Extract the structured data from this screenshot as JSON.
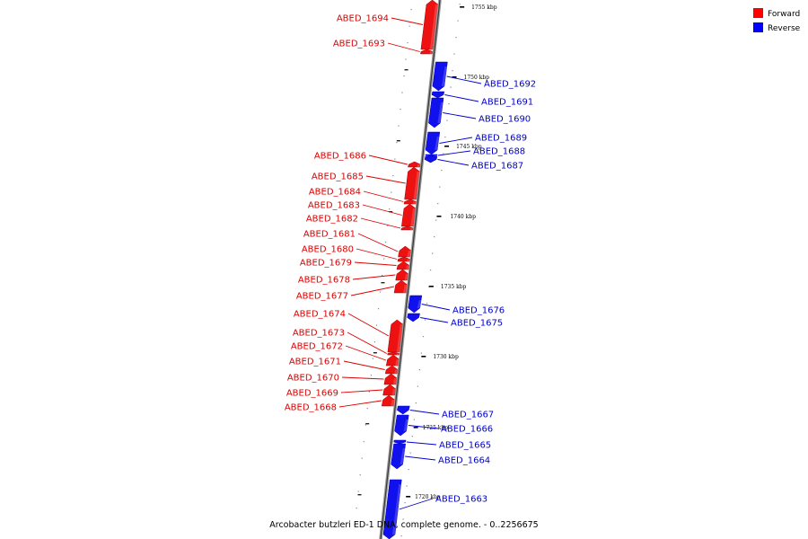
{
  "caption": "Arcobacter butzleri ED-1 DNA, complete genome. - 0..2256675",
  "legend": [
    {
      "label": "Forward",
      "color": "#ff0000"
    },
    {
      "label": "Reverse",
      "color": "#0000ff"
    }
  ],
  "colors": {
    "forward": "#ee1111",
    "reverse": "#1111ee",
    "forward_label": "#dd0000",
    "reverse_label": "#0000cc"
  },
  "ticks": [
    {
      "kbp": 1755,
      "label": "1755 kbp"
    },
    {
      "kbp": 1750,
      "label": "1750 kbp"
    },
    {
      "kbp": 1745,
      "label": "1745 kbp"
    },
    {
      "kbp": 1740,
      "label": "1740 kbp"
    },
    {
      "kbp": 1735,
      "label": "1735 kbp"
    },
    {
      "kbp": 1730,
      "label": "1730 kbp"
    },
    {
      "kbp": 1725,
      "label": "1725 kbp"
    },
    {
      "kbp": 1720,
      "label": "1720 kbp"
    }
  ],
  "genes": [
    {
      "name": "ABED_1694",
      "strand": "forward"
    },
    {
      "name": "ABED_1693",
      "strand": "forward"
    },
    {
      "name": "ABED_1692",
      "strand": "reverse"
    },
    {
      "name": "ABED_1691",
      "strand": "reverse"
    },
    {
      "name": "ABED_1690",
      "strand": "reverse"
    },
    {
      "name": "ABED_1689",
      "strand": "reverse"
    },
    {
      "name": "ABED_1688",
      "strand": "reverse"
    },
    {
      "name": "ABED_1687",
      "strand": "reverse"
    },
    {
      "name": "ABED_1686",
      "strand": "forward"
    },
    {
      "name": "ABED_1685",
      "strand": "forward"
    },
    {
      "name": "ABED_1684",
      "strand": "forward"
    },
    {
      "name": "ABED_1683",
      "strand": "forward"
    },
    {
      "name": "ABED_1682",
      "strand": "forward"
    },
    {
      "name": "ABED_1681",
      "strand": "forward"
    },
    {
      "name": "ABED_1680",
      "strand": "forward"
    },
    {
      "name": "ABED_1679",
      "strand": "forward"
    },
    {
      "name": "ABED_1678",
      "strand": "forward"
    },
    {
      "name": "ABED_1677",
      "strand": "forward"
    },
    {
      "name": "ABED_1676",
      "strand": "reverse"
    },
    {
      "name": "ABED_1675",
      "strand": "reverse"
    },
    {
      "name": "ABED_1674",
      "strand": "forward"
    },
    {
      "name": "ABED_1673",
      "strand": "forward"
    },
    {
      "name": "ABED_1672",
      "strand": "forward"
    },
    {
      "name": "ABED_1671",
      "strand": "forward"
    },
    {
      "name": "ABED_1670",
      "strand": "forward"
    },
    {
      "name": "ABED_1669",
      "strand": "forward"
    },
    {
      "name": "ABED_1668",
      "strand": "forward"
    },
    {
      "name": "ABED_1667",
      "strand": "reverse"
    },
    {
      "name": "ABED_1666",
      "strand": "reverse"
    },
    {
      "name": "ABED_1665",
      "strand": "reverse"
    },
    {
      "name": "ABED_1664",
      "strand": "reverse"
    },
    {
      "name": "ABED_1663",
      "strand": "reverse"
    }
  ]
}
